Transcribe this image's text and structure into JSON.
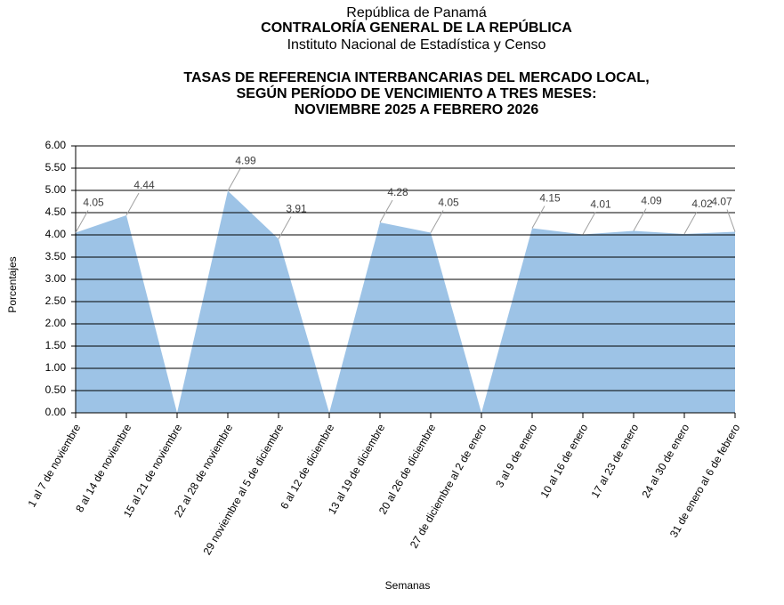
{
  "chart_data": {
    "type": "area",
    "header": [
      "República de Panamá",
      "CONTRALORÍA GENERAL DE LA REPÚBLICA",
      "Instituto  Nacional de Estadística y Censo"
    ],
    "title": [
      "TASAS DE REFERENCIA INTERBANCARIAS DEL MERCADO LOCAL,",
      "SEGÚN PERÍODO DE VENCIMIENTO A TRES MESES:",
      "NOVIEMBRE 2025 A FEBRERO 2026"
    ],
    "x_label": "Semanas",
    "y_label": "Porcentajes",
    "categories": [
      "1 al 7 de noviembre",
      "8 al 14 de noviembre",
      "15 al 21 de noviembre",
      "22 al 28 de noviembre",
      "29 noviembre al 5 de diciembre",
      "6 al 12 de diciembre",
      "13 al 19 de diciembre",
      "20 al 26 de diciembre",
      "27 de diciembre al 2 de enero",
      "3 al 9 de enero",
      "10 al 16 de enero",
      "17 al 23 de enero",
      "24 al 30 de enero",
      "31 de enero al 6 de febrero"
    ],
    "values": [
      4.05,
      4.44,
      0,
      4.99,
      3.91,
      0,
      4.28,
      4.05,
      0,
      4.15,
      4.01,
      4.09,
      4.02,
      4.07
    ],
    "value_labels": [
      "4.05",
      "4.44",
      null,
      "4.99",
      "3.91",
      null,
      "4.28",
      "4.05",
      null,
      "4.15",
      "4.01",
      "4.09",
      "4.02",
      "4.07"
    ],
    "color": "#9dc3e6",
    "ylim": [
      0,
      6
    ],
    "yticks": [
      {
        "value": 0,
        "label": "0.00"
      },
      {
        "value": 0.5,
        "label": "0.50"
      },
      {
        "value": 1,
        "label": "1.00"
      },
      {
        "value": 1.5,
        "label": "1.50"
      },
      {
        "value": 2,
        "label": "2.00"
      },
      {
        "value": 2.5,
        "label": "2.50"
      },
      {
        "value": 3,
        "label": "3.00"
      },
      {
        "value": 3.5,
        "label": "3.50"
      },
      {
        "value": 4,
        "label": "4.00"
      },
      {
        "value": 4.5,
        "label": "4.50"
      },
      {
        "value": 5,
        "label": "5.00"
      },
      {
        "value": 5.5,
        "label": "5.50"
      },
      {
        "value": 6,
        "label": "6.00"
      }
    ],
    "grid": true
  }
}
